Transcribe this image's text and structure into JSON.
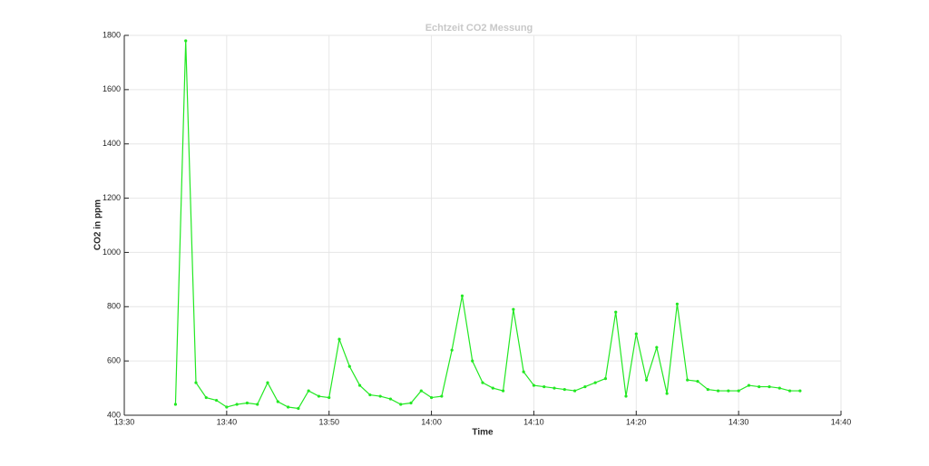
{
  "chart_data": {
    "type": "line",
    "title": "Echtzeit CO2 Messung",
    "xlabel": "Time",
    "ylabel": "CO2 in ppm",
    "x": [
      "13:35",
      "13:36",
      "13:37",
      "13:38",
      "13:39",
      "13:40",
      "13:41",
      "13:42",
      "13:43",
      "13:44",
      "13:45",
      "13:46",
      "13:47",
      "13:48",
      "13:49",
      "13:50",
      "13:51",
      "13:52",
      "13:53",
      "13:54",
      "13:55",
      "13:56",
      "13:57",
      "13:58",
      "13:59",
      "14:00",
      "14:01",
      "14:02",
      "14:03",
      "14:04",
      "14:05",
      "14:06",
      "14:07",
      "14:08",
      "14:09",
      "14:10",
      "14:11",
      "14:12",
      "14:13",
      "14:14",
      "14:15",
      "14:16",
      "14:17",
      "14:18",
      "14:19",
      "14:20",
      "14:21",
      "14:22",
      "14:23",
      "14:24",
      "14:25",
      "14:26",
      "14:27",
      "14:28",
      "14:29",
      "14:30",
      "14:31",
      "14:32",
      "14:33",
      "14:34",
      "14:35",
      "14:36"
    ],
    "series": [
      {
        "name": "CO2",
        "color": "#22e822",
        "values": [
          440,
          1780,
          520,
          465,
          455,
          430,
          440,
          445,
          440,
          520,
          450,
          430,
          425,
          490,
          470,
          465,
          680,
          580,
          510,
          475,
          470,
          460,
          440,
          445,
          490,
          465,
          470,
          640,
          840,
          600,
          520,
          500,
          490,
          790,
          560,
          510,
          505,
          500,
          495,
          490,
          505,
          520,
          535,
          780,
          470,
          700,
          530,
          650,
          480,
          810,
          530,
          525,
          495,
          490,
          490,
          490,
          510,
          505,
          505,
          500,
          490,
          490
        ]
      }
    ],
    "xlim": [
      "13:30",
      "14:40"
    ],
    "xticks": [
      "13:30",
      "13:40",
      "13:50",
      "14:00",
      "14:10",
      "14:20",
      "14:30",
      "14:40"
    ],
    "ylim": [
      400,
      1800
    ],
    "yticks": [
      400,
      600,
      800,
      1000,
      1200,
      1400,
      1600,
      1800
    ],
    "grid": true
  }
}
